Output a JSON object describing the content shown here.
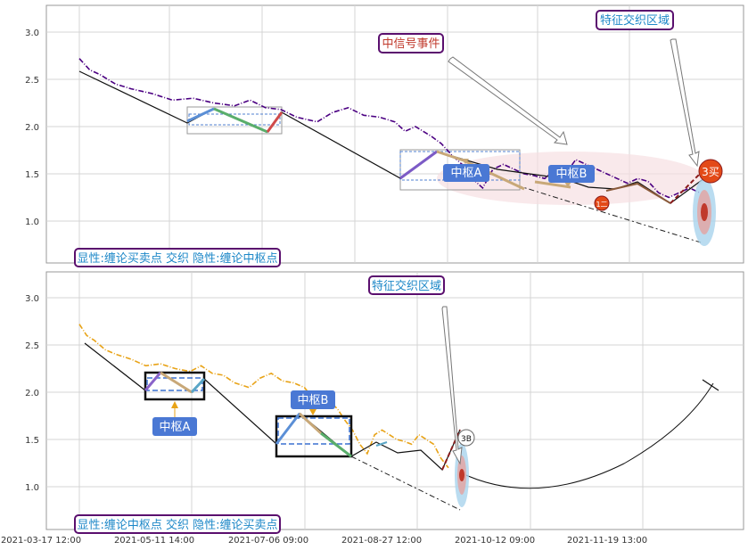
{
  "chart_data": [
    {
      "type": "line",
      "panel": "top",
      "ylim": [
        0.45,
        3.3
      ],
      "yticks": [
        "1.0",
        "1.5",
        "2.0",
        "2.5",
        "3.0"
      ],
      "grid": true,
      "series": [
        {
          "color": "#4b0082",
          "style": "dashdot",
          "x": [
            0,
            4,
            8,
            14,
            20,
            28,
            36,
            44,
            52,
            60,
            66,
            72,
            78,
            84,
            92,
            98,
            104,
            110,
            116,
            122,
            126,
            130,
            136,
            140,
            144,
            148,
            152,
            156,
            160,
            164,
            168,
            172,
            176,
            180,
            184,
            188,
            192,
            196,
            200,
            204,
            208,
            212,
            216,
            220,
            224,
            228,
            232,
            236,
            240
          ],
          "y": [
            2.72,
            2.6,
            2.55,
            2.45,
            2.4,
            2.35,
            2.28,
            2.3,
            2.25,
            2.22,
            2.28,
            2.2,
            2.18,
            2.1,
            2.05,
            2.15,
            2.2,
            2.12,
            2.1,
            2.05,
            1.95,
            2.0,
            1.9,
            1.82,
            1.7,
            1.6,
            1.45,
            1.35,
            1.55,
            1.6,
            1.55,
            1.5,
            1.48,
            1.45,
            1.55,
            1.5,
            1.65,
            1.6,
            1.55,
            1.5,
            1.45,
            1.4,
            1.45,
            1.42,
            1.3,
            1.25,
            1.3,
            1.35,
            1.3
          ]
        }
      ],
      "strokes": [
        {
          "x": [
            0,
            40,
            64,
            88,
            110,
            136,
            152,
            170,
            192,
            212,
            224,
            236
          ],
          "y": [
            2.5,
            2.0,
            2.2,
            1.95,
            2.15,
            1.45,
            1.73,
            1.5,
            1.35,
            1.5,
            1.18,
            1.58
          ]
        }
      ],
      "zhongshu": [
        {
          "label": "中枢A",
          "x0": 120,
          "x1": 140,
          "y0": 1.3,
          "y1": 1.75
        },
        {
          "label": "中枢B",
          "x0": 150,
          "x1": 170,
          "y0": 1.35,
          "y1": 1.5
        }
      ],
      "annotations": [
        "中信号事件",
        "特征交织区域",
        "3买",
        "1二"
      ],
      "legend_text": "显性:缠论买卖点 交织 隐性:缠论中枢点"
    },
    {
      "type": "line",
      "panel": "bottom",
      "ylim": [
        0.55,
        3.3
      ],
      "yticks": [
        "1.0",
        "1.5",
        "2.0",
        "2.5",
        "3.0"
      ],
      "grid": true,
      "series": [
        {
          "color": "#e8a317",
          "style": "dashdot",
          "x": [
            0,
            4,
            8,
            14,
            20,
            28,
            36,
            44,
            52,
            60,
            66,
            72,
            78,
            84,
            92,
            98,
            104,
            110,
            116,
            122,
            126,
            130,
            136,
            140,
            144,
            148,
            152,
            156,
            160,
            164,
            168,
            172,
            176,
            180,
            184,
            188,
            192,
            196,
            200
          ],
          "y": [
            2.72,
            2.6,
            2.55,
            2.45,
            2.4,
            2.35,
            2.28,
            2.3,
            2.25,
            2.22,
            2.28,
            2.2,
            2.18,
            2.1,
            2.05,
            2.15,
            2.2,
            2.12,
            2.1,
            2.05,
            1.95,
            2.0,
            1.9,
            1.82,
            1.7,
            1.6,
            1.45,
            1.35,
            1.55,
            1.6,
            1.55,
            1.5,
            1.48,
            1.45,
            1.55,
            1.5,
            1.45,
            1.3,
            1.2
          ]
        }
      ],
      "zhongshu": [
        {
          "label": "中枢A",
          "x0": 40,
          "x1": 70,
          "y0": 1.92,
          "y1": 2.2
        },
        {
          "label": "中枢B",
          "x0": 112,
          "x1": 150,
          "y0": 1.32,
          "y1": 1.75
        }
      ],
      "annotations": [
        "特征交织区域",
        "3B"
      ],
      "legend_text": "显性:缠论中枢点 交织 隐性:缠论买卖点"
    }
  ],
  "x_ticks": [
    "2021-03-17 12:00",
    "2021-05-11 14:00",
    "2021-07-06 09:00",
    "2021-08-27 12:00",
    "2021-10-12 09:00",
    "2021-11-19 13:00"
  ],
  "colors": {
    "grid": "#d0d0d0",
    "panel_border": "#999999",
    "label_border": "#5a0f6e",
    "label_text": "#1e88c8",
    "box_fill": "#4a78d4",
    "top_series": "#4b0082",
    "bottom_series": "#e8a317"
  }
}
